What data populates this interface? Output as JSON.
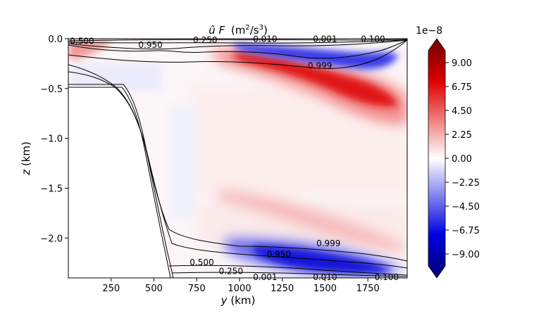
{
  "chart_data": {
    "type": "heatmap",
    "title": "û F (m²/s³)",
    "title_parts": {
      "var": "û F",
      "unit_open": "(m",
      "unit_sup1": "2",
      "unit_mid": "/s",
      "unit_sup2": "3",
      "unit_close": ")"
    },
    "xlabel": "y (km)",
    "ylabel": "z (km)",
    "xlim": [
      0,
      1980
    ],
    "ylim": [
      -2.4,
      0.0
    ],
    "xticks": [
      250,
      500,
      750,
      1000,
      1250,
      1500,
      1750
    ],
    "yticks": [
      0.0,
      -0.5,
      -1.0,
      -1.5,
      -2.0
    ],
    "xtick_labels": [
      "250",
      "500",
      "750",
      "1000",
      "1250",
      "1500",
      "1750"
    ],
    "ytick_labels": [
      "0.0",
      "−0.5",
      "−1.0",
      "−1.5",
      "−2.0"
    ],
    "colorbar": {
      "scale_label": "1e−8",
      "range": [
        -10.125,
        10.125
      ],
      "ticks": [
        9.0,
        6.75,
        4.5,
        2.25,
        0.0,
        -2.25,
        -4.5,
        -6.75,
        -9.0
      ],
      "tick_labels": [
        "9.00",
        "6.75",
        "4.50",
        "2.25",
        "0.00",
        "−2.25",
        "−4.50",
        "−6.75",
        "−9.00"
      ],
      "colors": {
        "max": "#5c0a0a",
        "pos": "#e01010",
        "zero": "#ffffff",
        "neg": "#1010e0",
        "min": "#0a0a5c"
      }
    },
    "features": [
      {
        "name": "upper-red-jet",
        "sign": "positive",
        "peak": 7.0,
        "y": [
          850,
          1800
        ],
        "z": [
          -0.1,
          -0.6
        ]
      },
      {
        "name": "upper-blue-core",
        "sign": "negative",
        "peak": -6.5,
        "y": [
          1100,
          1850
        ],
        "z": [
          -0.1,
          -0.3
        ]
      },
      {
        "name": "bottom-blue-core",
        "sign": "negative",
        "peak": -7.5,
        "y": [
          1100,
          1850
        ],
        "z": [
          -2.05,
          -2.35
        ]
      },
      {
        "name": "bottom-red-band",
        "sign": "positive",
        "peak": 3.5,
        "y": [
          900,
          1900
        ],
        "z": [
          -1.5,
          -2.1
        ]
      }
    ],
    "contours": [
      {
        "level": 0.999,
        "label": "0.999"
      },
      {
        "level": 0.95,
        "label": "0.950"
      },
      {
        "level": 0.5,
        "label": "0.500"
      },
      {
        "level": 0.25,
        "label": "0.250"
      },
      {
        "level": 0.1,
        "label": "0.100"
      },
      {
        "level": 0.01,
        "label": "0.010"
      },
      {
        "level": 0.001,
        "label": "0.001"
      }
    ],
    "contour_labels": [
      {
        "text": "0.500",
        "y": 80,
        "z": -0.03
      },
      {
        "text": "0.950",
        "y": 480,
        "z": -0.07
      },
      {
        "text": "0.250",
        "y": 800,
        "z": -0.02
      },
      {
        "text": "0.010",
        "y": 1150,
        "z": -0.01
      },
      {
        "text": "0.001",
        "y": 1500,
        "z": -0.01
      },
      {
        "text": "0.100",
        "y": 1780,
        "z": -0.01
      },
      {
        "text": "0.999",
        "y": 1470,
        "z": -0.28
      },
      {
        "text": "0.999",
        "y": 1520,
        "z": -2.06
      },
      {
        "text": "0.950",
        "y": 1230,
        "z": -2.17
      },
      {
        "text": "0.500",
        "y": 780,
        "z": -2.25
      },
      {
        "text": "0.250",
        "y": 950,
        "z": -2.34
      },
      {
        "text": "0.001",
        "y": 1150,
        "z": -2.4
      },
      {
        "text": "0.010",
        "y": 1500,
        "z": -2.4
      },
      {
        "text": "0.100",
        "y": 1860,
        "z": -2.4
      }
    ]
  }
}
